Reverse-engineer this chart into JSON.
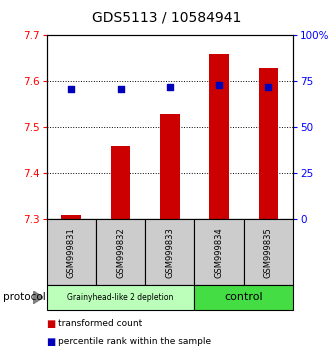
{
  "title": "GDS5113 / 10584941",
  "samples": [
    "GSM999831",
    "GSM999832",
    "GSM999833",
    "GSM999834",
    "GSM999835"
  ],
  "bar_values": [
    7.31,
    7.46,
    7.53,
    7.66,
    7.63
  ],
  "dot_values": [
    71,
    71,
    72,
    73,
    72
  ],
  "ylim": [
    7.3,
    7.7
  ],
  "y2lim": [
    0,
    100
  ],
  "yticks": [
    7.3,
    7.4,
    7.5,
    7.6,
    7.7
  ],
  "y2ticks": [
    0,
    25,
    50,
    75,
    100
  ],
  "y2ticklabels": [
    "0",
    "25",
    "50",
    "75",
    "100%"
  ],
  "bar_color": "#cc0000",
  "dot_color": "#0000bb",
  "group1_label": "Grainyhead-like 2 depletion",
  "group2_label": "control",
  "group1_color": "#bbffbb",
  "group2_color": "#44dd44",
  "protocol_label": "protocol",
  "legend1": "transformed count",
  "legend2": "percentile rank within the sample",
  "bar_bottom": 7.3,
  "sample_box_color": "#cccccc",
  "fig_bg": "#ffffff"
}
